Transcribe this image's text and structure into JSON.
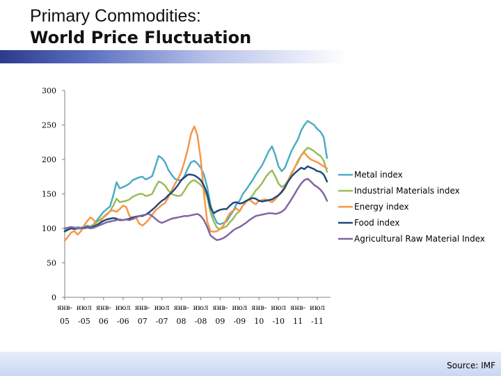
{
  "title": {
    "line1": "Primary Commodities:",
    "line2": "World Price Fluctuation"
  },
  "source": "Source: IMF",
  "chart_data": {
    "type": "line",
    "title": "Primary Commodities: World Price Fluctuation",
    "xlabel": "",
    "ylabel": "",
    "ylim": [
      0,
      300
    ],
    "yticks": [
      0,
      50,
      100,
      150,
      200,
      250,
      300
    ],
    "grid": false,
    "legend": "right",
    "x": [
      0,
      1,
      2,
      3,
      4,
      5,
      6,
      7,
      8,
      9,
      10,
      11,
      12,
      13,
      14,
      15,
      16,
      17,
      18,
      19,
      20,
      21,
      22,
      23,
      24,
      25,
      26,
      27,
      28,
      29,
      30,
      31,
      32,
      33,
      34,
      35,
      36,
      37,
      38,
      39,
      40,
      41,
      42,
      43,
      44,
      45,
      46,
      47,
      48,
      49,
      50,
      51,
      52,
      53,
      54,
      55,
      56,
      57,
      58,
      59,
      60,
      61,
      62,
      63,
      64,
      65,
      66,
      67,
      68,
      69,
      70,
      71,
      72,
      73,
      74,
      75,
      76,
      77,
      78,
      79,
      80,
      81
    ],
    "x_ticks": [
      {
        "x": 0,
        "line1": "янв-",
        "line2": "05"
      },
      {
        "x": 6,
        "line1": "июл",
        "line2": "-05"
      },
      {
        "x": 12,
        "line1": "янв-",
        "line2": "06"
      },
      {
        "x": 18,
        "line1": "июл",
        "line2": "-06"
      },
      {
        "x": 24,
        "line1": "янв-",
        "line2": "07"
      },
      {
        "x": 30,
        "line1": "июл",
        "line2": "-07"
      },
      {
        "x": 36,
        "line1": "янв-",
        "line2": "08"
      },
      {
        "x": 42,
        "line1": "июл",
        "line2": "-08"
      },
      {
        "x": 48,
        "line1": "янв-",
        "line2": "09"
      },
      {
        "x": 54,
        "line1": "июл",
        "line2": "-09"
      },
      {
        "x": 60,
        "line1": "янв-",
        "line2": "10"
      },
      {
        "x": 66,
        "line1": "июл",
        "line2": "-10"
      },
      {
        "x": 72,
        "line1": "янв-",
        "line2": "11"
      },
      {
        "x": 78,
        "line1": "июл",
        "line2": "-11"
      }
    ],
    "series": [
      {
        "name": "Metal index",
        "color": "#4bacc6",
        "values": [
          95,
          98,
          101,
          100,
          102,
          101,
          102,
          104,
          103,
          106,
          112,
          118,
          124,
          128,
          132,
          148,
          167,
          158,
          160,
          162,
          165,
          170,
          172,
          174,
          175,
          171,
          173,
          176,
          190,
          205,
          202,
          196,
          185,
          178,
          172,
          170,
          170,
          176,
          187,
          196,
          198,
          194,
          188,
          178,
          160,
          135,
          118,
          108,
          106,
          108,
          110,
          118,
          125,
          135,
          140,
          150,
          156,
          163,
          170,
          178,
          185,
          192,
          202,
          212,
          219,
          207,
          190,
          183,
          188,
          200,
          212,
          221,
          229,
          242,
          250,
          256,
          253,
          250,
          244,
          240,
          232,
          202
        ]
      },
      {
        "name": "Industrial Materials index",
        "color": "#9bbb59",
        "values": [
          97,
          99,
          101,
          100,
          101,
          100,
          101,
          103,
          103,
          105,
          109,
          113,
          116,
          120,
          125,
          133,
          143,
          138,
          139,
          140,
          142,
          146,
          148,
          150,
          150,
          147,
          148,
          150,
          160,
          168,
          166,
          162,
          155,
          150,
          148,
          147,
          148,
          155,
          163,
          168,
          170,
          167,
          163,
          157,
          145,
          124,
          110,
          101,
          99,
          101,
          103,
          109,
          114,
          121,
          125,
          133,
          138,
          143,
          148,
          155,
          160,
          166,
          174,
          180,
          184,
          176,
          165,
          160,
          163,
          170,
          180,
          188,
          196,
          206,
          212,
          217,
          215,
          212,
          208,
          205,
          198,
          182
        ]
      },
      {
        "name": "Energy index",
        "color": "#f79646",
        "values": [
          82,
          88,
          94,
          96,
          91,
          96,
          104,
          111,
          116,
          112,
          103,
          109,
          117,
          121,
          125,
          126,
          124,
          128,
          133,
          131,
          118,
          113,
          116,
          107,
          104,
          108,
          113,
          120,
          126,
          130,
          134,
          137,
          145,
          155,
          164,
          172,
          182,
          197,
          215,
          237,
          248,
          235,
          200,
          150,
          110,
          96,
          95,
          96,
          99,
          104,
          114,
          122,
          126,
          129,
          125,
          133,
          139,
          142,
          138,
          135,
          140,
          141,
          142,
          140,
          138,
          142,
          148,
          152,
          158,
          170,
          178,
          188,
          198,
          206,
          210,
          204,
          200,
          198,
          196,
          193,
          190,
          187
        ]
      },
      {
        "name": "Food index",
        "color": "#1f497d",
        "values": [
          96,
          98,
          100,
          99,
          100,
          100,
          101,
          102,
          101,
          103,
          105,
          108,
          111,
          113,
          114,
          115,
          114,
          112,
          112,
          113,
          114,
          116,
          117,
          118,
          118,
          120,
          123,
          127,
          131,
          136,
          140,
          143,
          148,
          152,
          157,
          163,
          170,
          174,
          178,
          178,
          177,
          174,
          170,
          162,
          150,
          130,
          122,
          125,
          127,
          128,
          128,
          133,
          137,
          138,
          136,
          137,
          140,
          142,
          144,
          143,
          140,
          139,
          140,
          141,
          142,
          145,
          148,
          153,
          160,
          168,
          175,
          180,
          184,
          188,
          186,
          190,
          188,
          186,
          183,
          182,
          178,
          168
        ]
      },
      {
        "name": "Agricultural Raw Material Index",
        "color": "#8064a2",
        "values": [
          100,
          101,
          102,
          101,
          100,
          100,
          100,
          101,
          100,
          101,
          103,
          105,
          107,
          109,
          110,
          111,
          112,
          113,
          112,
          113,
          112,
          114,
          116,
          118,
          119,
          120,
          121,
          118,
          114,
          110,
          108,
          110,
          112,
          114,
          115,
          116,
          117,
          118,
          118,
          119,
          120,
          121,
          118,
          112,
          102,
          90,
          86,
          83,
          84,
          86,
          89,
          93,
          97,
          100,
          102,
          105,
          108,
          112,
          115,
          118,
          119,
          120,
          121,
          122,
          122,
          121,
          122,
          124,
          128,
          135,
          142,
          150,
          158,
          165,
          170,
          172,
          168,
          163,
          160,
          156,
          150,
          140
        ]
      }
    ]
  }
}
